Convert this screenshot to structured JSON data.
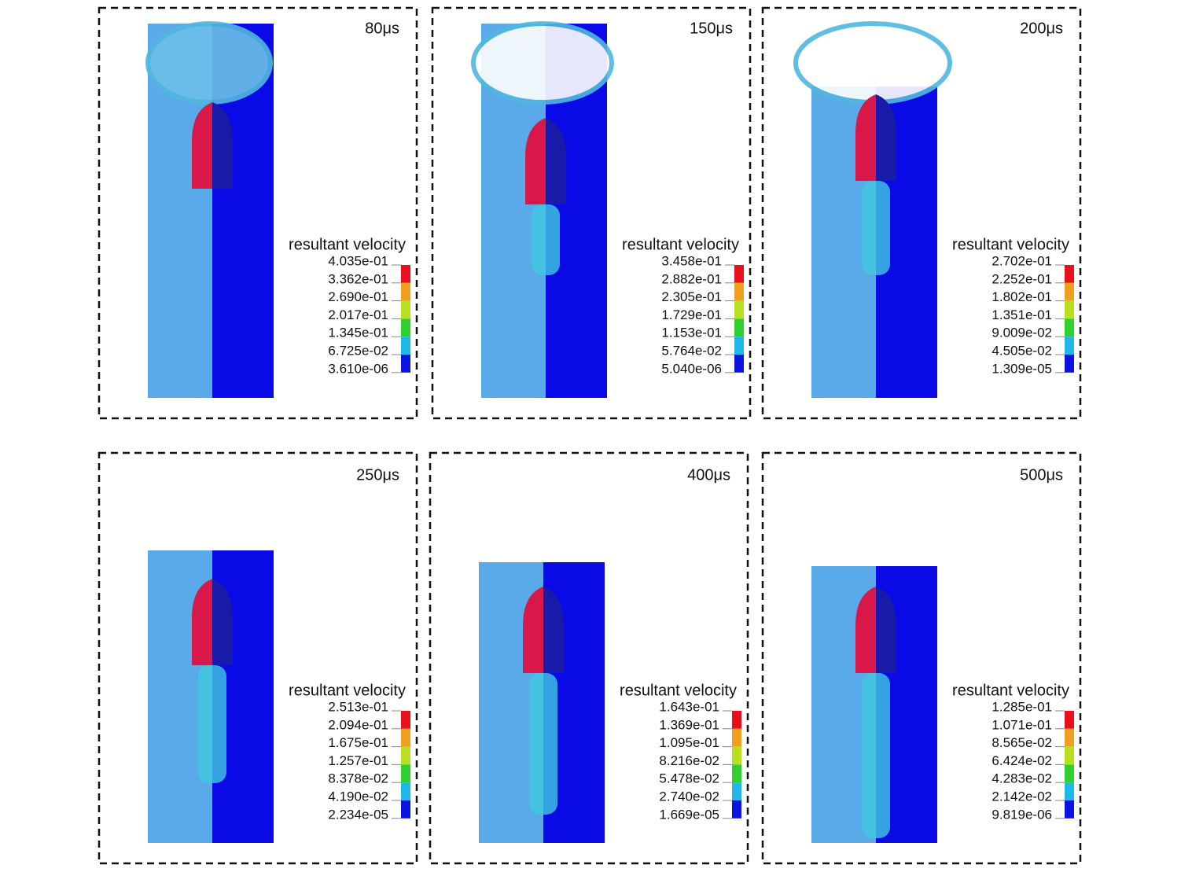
{
  "panels": [
    {
      "time": "80μs",
      "legend_title": "resultant velocity",
      "levels": [
        "4.035e-01",
        "3.362e-01",
        "2.690e-01",
        "2.017e-01",
        "1.345e-01",
        "6.725e-02",
        "3.610e-06"
      ]
    },
    {
      "time": "150μs",
      "legend_title": "resultant velocity",
      "levels": [
        "3.458e-01",
        "2.882e-01",
        "2.305e-01",
        "1.729e-01",
        "1.153e-01",
        "5.764e-02",
        "5.040e-06"
      ]
    },
    {
      "time": "200μs",
      "legend_title": "resultant velocity",
      "levels": [
        "2.702e-01",
        "2.252e-01",
        "1.802e-01",
        "1.351e-01",
        "9.009e-02",
        "4.505e-02",
        "1.309e-05"
      ]
    },
    {
      "time": "250μs",
      "legend_title": "resultant velocity",
      "levels": [
        "2.513e-01",
        "2.094e-01",
        "1.675e-01",
        "1.257e-01",
        "8.378e-02",
        "4.190e-02",
        "2.234e-05"
      ]
    },
    {
      "time": "400μs",
      "legend_title": "resultant velocity",
      "levels": [
        "1.643e-01",
        "1.369e-01",
        "1.095e-01",
        "8.216e-02",
        "5.478e-02",
        "2.740e-02",
        "1.669e-05"
      ]
    },
    {
      "time": "500μs",
      "legend_title": "resultant velocity",
      "levels": [
        "1.285e-01",
        "1.071e-01",
        "8.565e-02",
        "6.424e-02",
        "4.283e-02",
        "2.142e-02",
        "9.819e-06"
      ]
    }
  ]
}
